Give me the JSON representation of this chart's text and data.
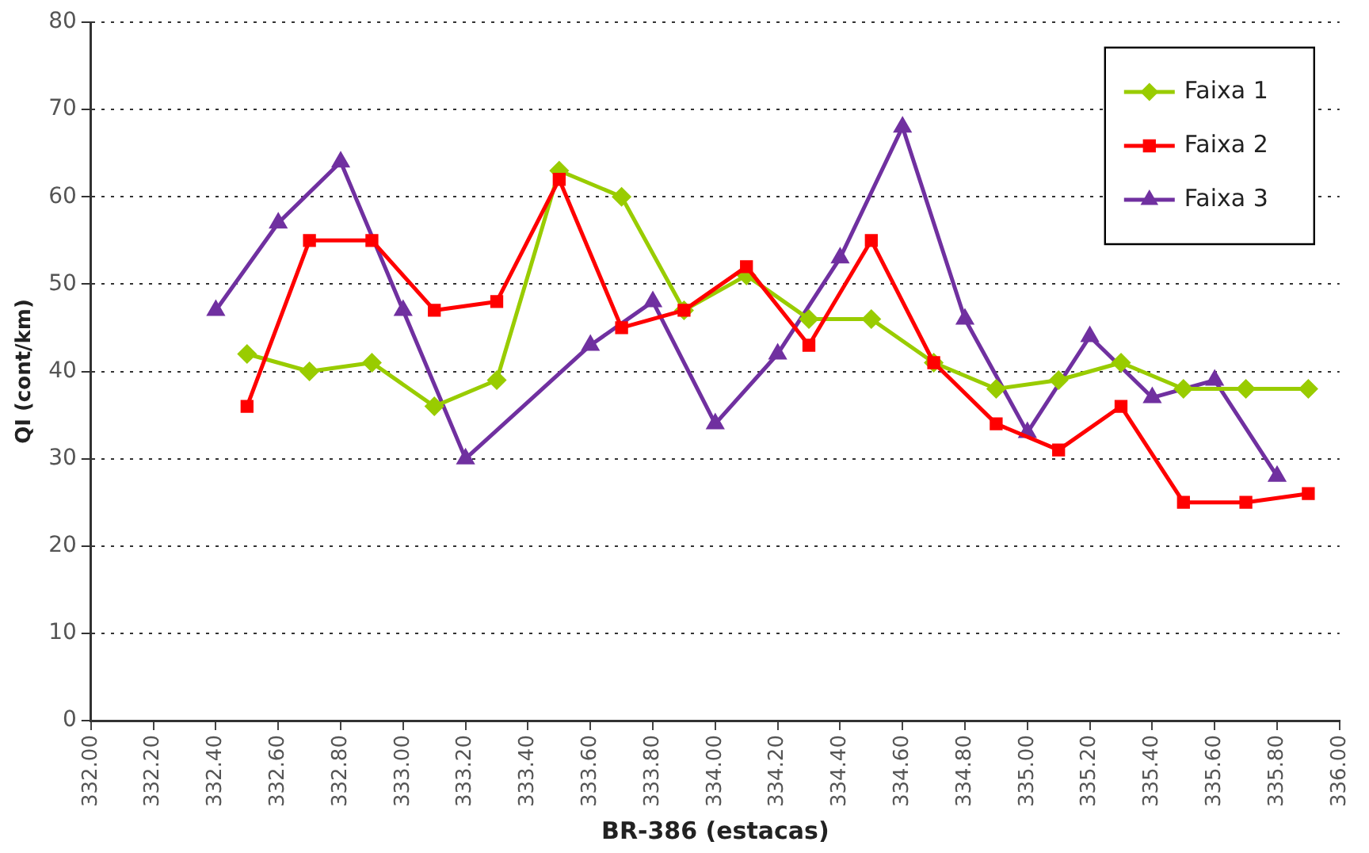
{
  "chart_data": {
    "type": "line",
    "xlabel": "BR-386 (estacas)",
    "ylabel": "QI (cont/km)",
    "xlim": [
      332,
      336
    ],
    "xticks": [
      {
        "value": 332,
        "label": "332.00"
      },
      {
        "value": 332.2,
        "label": "332.20"
      },
      {
        "value": 332.4,
        "label": "332.40"
      },
      {
        "value": 332.6,
        "label": "332.60"
      },
      {
        "value": 332.8,
        "label": "332.80"
      },
      {
        "value": 333,
        "label": "333.00"
      },
      {
        "value": 333.2,
        "label": "333.20"
      },
      {
        "value": 333.4,
        "label": "333.40"
      },
      {
        "value": 333.6,
        "label": "333.60"
      },
      {
        "value": 333.8,
        "label": "333.80"
      },
      {
        "value": 334,
        "label": "334.00"
      },
      {
        "value": 334.2,
        "label": "334.20"
      },
      {
        "value": 334.4,
        "label": "334.40"
      },
      {
        "value": 334.6,
        "label": "334.60"
      },
      {
        "value": 334.8,
        "label": "334.80"
      },
      {
        "value": 335,
        "label": "335.00"
      },
      {
        "value": 335.2,
        "label": "335.20"
      },
      {
        "value": 335.4,
        "label": "335.40"
      },
      {
        "value": 335.6,
        "label": "335.60"
      },
      {
        "value": 335.8,
        "label": "335.80"
      },
      {
        "value": 336,
        "label": "336.00"
      }
    ],
    "ylim": [
      0,
      80
    ],
    "yticks": [
      0,
      10,
      20,
      30,
      40,
      50,
      60,
      70,
      80
    ],
    "grid": "y",
    "legend": "top right",
    "series": [
      {
        "name": "Faixa 1",
        "color": "#99cc00",
        "marker": "diamond",
        "x": [
          332.5,
          332.7,
          332.9,
          333.1,
          333.3,
          333.5,
          333.7,
          333.9,
          334.1,
          334.3,
          334.5,
          334.7,
          334.9,
          335.1,
          335.3,
          335.5,
          335.7,
          335.9
        ],
        "values": [
          42,
          40,
          41,
          36,
          39,
          63,
          60,
          47,
          51,
          46,
          46,
          41,
          38,
          39,
          41,
          38,
          38,
          38
        ]
      },
      {
        "name": "Faixa 2",
        "color": "#ff0000",
        "marker": "square",
        "x": [
          332.5,
          332.7,
          332.9,
          333.1,
          333.3,
          333.5,
          333.7,
          333.9,
          334.1,
          334.3,
          334.5,
          334.7,
          334.9,
          335.1,
          335.3,
          335.5,
          335.7,
          335.9
        ],
        "values": [
          36,
          55,
          55,
          47,
          48,
          62,
          45,
          47,
          52,
          43,
          55,
          41,
          34,
          31,
          36,
          25,
          25,
          26
        ]
      },
      {
        "name": "Faixa 3",
        "color": "#7030a0",
        "marker": "triangle",
        "x": [
          332.4,
          332.6,
          332.8,
          333.0,
          333.2,
          333.6,
          333.8,
          334.0,
          334.2,
          334.4,
          334.6,
          334.8,
          335.0,
          335.2,
          335.4,
          335.6,
          335.8
        ],
        "values": [
          47,
          57,
          64,
          47,
          30,
          43,
          48,
          34,
          42,
          53,
          68,
          46,
          33,
          44,
          37,
          39,
          28
        ]
      }
    ]
  }
}
